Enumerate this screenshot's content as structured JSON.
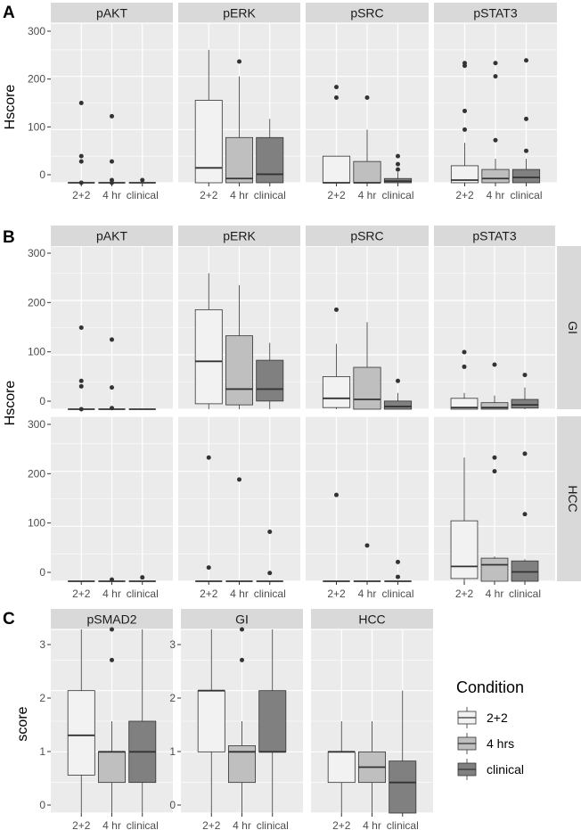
{
  "chart_data": [
    {
      "panel": "A",
      "type": "boxplot",
      "ylabel": "Hscore",
      "ylim": [
        0,
        300
      ],
      "yticks": [
        0,
        100,
        200,
        300
      ],
      "categories": [
        "2+2",
        "4 hr",
        "clinical"
      ],
      "facets": [
        {
          "name": "pAKT",
          "boxes": [
            {
              "q1": 0,
              "median": 0,
              "q3": 0,
              "lo": 0,
              "hi": 0,
              "outliers": [
                150,
                50,
                40,
                0
              ]
            },
            {
              "q1": 0,
              "median": 0,
              "q3": 0,
              "lo": 0,
              "hi": 0,
              "outliers": [
                125,
                40,
                5,
                0
              ]
            },
            {
              "q1": 0,
              "median": 0,
              "q3": 0,
              "lo": 0,
              "hi": 0,
              "outliers": [
                5
              ]
            }
          ]
        },
        {
          "name": "pERK",
          "boxes": [
            {
              "q1": 0,
              "median": 28,
              "q3": 155,
              "lo": 0,
              "hi": 250,
              "outliers": []
            },
            {
              "q1": 0,
              "median": 8,
              "q3": 85,
              "lo": 0,
              "hi": 200,
              "outliers": [
                228
              ]
            },
            {
              "q1": 0,
              "median": 16,
              "q3": 85,
              "lo": 0,
              "hi": 120,
              "outliers": []
            }
          ]
        },
        {
          "name": "pSRC",
          "boxes": [
            {
              "q1": 0,
              "median": 0,
              "q3": 50,
              "lo": 0,
              "hi": 50,
              "outliers": [
                180,
                160
              ]
            },
            {
              "q1": 0,
              "median": 0,
              "q3": 40,
              "lo": 0,
              "hi": 100,
              "outliers": [
                160
              ]
            },
            {
              "q1": 0,
              "median": 3,
              "q3": 8,
              "lo": 0,
              "hi": 20,
              "outliers": [
                50,
                35,
                25
              ]
            }
          ]
        },
        {
          "name": "pSTAT3",
          "boxes": [
            {
              "q1": 0,
              "median": 5,
              "q3": 32,
              "lo": 0,
              "hi": 75,
              "outliers": [
                225,
                220,
                135,
                100
              ]
            },
            {
              "q1": 0,
              "median": 8,
              "q3": 25,
              "lo": 0,
              "hi": 45,
              "outliers": [
                225,
                200,
                80
              ]
            },
            {
              "q1": 0,
              "median": 10,
              "q3": 25,
              "lo": 0,
              "hi": 45,
              "outliers": [
                230,
                120,
                60
              ]
            }
          ]
        }
      ]
    },
    {
      "panel": "B",
      "type": "boxplot",
      "ylabel": "Hscore",
      "ylim": [
        0,
        300
      ],
      "yticks": [
        0,
        100,
        200,
        300
      ],
      "categories": [
        "2+2",
        "4 hr",
        "clinical"
      ],
      "facets": [
        {
          "name": "pAKT",
          "row": "GI",
          "boxes": [
            {
              "q1": 0,
              "median": 0,
              "q3": 0,
              "lo": 0,
              "hi": 0,
              "outliers": [
                150,
                52,
                42,
                0
              ]
            },
            {
              "q1": 0,
              "median": 0,
              "q3": 0,
              "lo": 0,
              "hi": 0,
              "outliers": [
                128,
                40,
                2
              ]
            },
            {
              "q1": 0,
              "median": 0,
              "q3": 0,
              "lo": 0,
              "hi": 0,
              "outliers": []
            }
          ]
        },
        {
          "name": "pERK",
          "row": "GI",
          "boxes": [
            {
              "q1": 10,
              "median": 88,
              "q3": 183,
              "lo": 0,
              "hi": 250,
              "outliers": []
            },
            {
              "q1": 8,
              "median": 37,
              "q3": 135,
              "lo": 0,
              "hi": 228,
              "outliers": []
            },
            {
              "q1": 15,
              "median": 37,
              "q3": 90,
              "lo": 0,
              "hi": 122,
              "outliers": []
            }
          ]
        },
        {
          "name": "pSRC",
          "row": "GI",
          "boxes": [
            {
              "q1": 3,
              "median": 20,
              "q3": 60,
              "lo": 0,
              "hi": 120,
              "outliers": [
                183
              ]
            },
            {
              "q1": 0,
              "median": 18,
              "q3": 77,
              "lo": 0,
              "hi": 160,
              "outliers": []
            },
            {
              "q1": 0,
              "median": 5,
              "q3": 15,
              "lo": 0,
              "hi": 30,
              "outliers": [
                52
              ]
            }
          ]
        },
        {
          "name": "pSTAT3",
          "row": "GI",
          "boxes": [
            {
              "q1": 0,
              "median": 3,
              "q3": 20,
              "lo": 0,
              "hi": 30,
              "outliers": [
                105,
                78
              ]
            },
            {
              "q1": 0,
              "median": 3,
              "q3": 12,
              "lo": 0,
              "hi": 25,
              "outliers": [
                82
              ]
            },
            {
              "q1": 2,
              "median": 8,
              "q3": 18,
              "lo": 0,
              "hi": 40,
              "outliers": [
                63
              ]
            }
          ]
        },
        {
          "name": "pAKT",
          "row": "HCC",
          "boxes": [
            {
              "q1": 0,
              "median": 0,
              "q3": 0,
              "lo": 0,
              "hi": 0,
              "outliers": []
            },
            {
              "q1": 0,
              "median": 0,
              "q3": 0,
              "lo": 0,
              "hi": 0,
              "outliers": [
                3
              ]
            },
            {
              "q1": 0,
              "median": 0,
              "q3": 0,
              "lo": 0,
              "hi": 0,
              "outliers": [
                7
              ]
            }
          ]
        },
        {
          "name": "pERK",
          "row": "HCC",
          "boxes": [
            {
              "q1": 0,
              "median": 0,
              "q3": 0,
              "lo": 0,
              "hi": 0,
              "outliers": [
                225,
                25
              ]
            },
            {
              "q1": 0,
              "median": 0,
              "q3": 0,
              "lo": 0,
              "hi": 0,
              "outliers": [
                185
              ]
            },
            {
              "q1": 0,
              "median": 0,
              "q3": 0,
              "lo": 0,
              "hi": 0,
              "outliers": [
                90,
                15
              ]
            }
          ]
        },
        {
          "name": "pSRC",
          "row": "HCC",
          "boxes": [
            {
              "q1": 0,
              "median": 0,
              "q3": 0,
              "lo": 0,
              "hi": 0,
              "outliers": [
                157
              ]
            },
            {
              "q1": 0,
              "median": 0,
              "q3": 0,
              "lo": 0,
              "hi": 0,
              "outliers": [
                65
              ]
            },
            {
              "q1": 0,
              "median": 0,
              "q3": 0,
              "lo": 0,
              "hi": 0,
              "outliers": [
                35,
                8
              ]
            }
          ]
        },
        {
          "name": "pSTAT3",
          "row": "HCC",
          "boxes": [
            {
              "q1": 5,
              "median": 27,
              "q3": 110,
              "lo": 0,
              "hi": 225,
              "outliers": []
            },
            {
              "q1": 0,
              "median": 30,
              "q3": 42,
              "lo": 0,
              "hi": 45,
              "outliers": [
                225,
                200
              ]
            },
            {
              "q1": 0,
              "median": 17,
              "q3": 37,
              "lo": 0,
              "hi": 40,
              "outliers": [
                232,
                122
              ]
            }
          ]
        }
      ],
      "row_labels": [
        "GI",
        "HCC"
      ]
    },
    {
      "panel": "C",
      "type": "boxplot",
      "ylabel": "score",
      "ylim": [
        0,
        3
      ],
      "yticks": [
        0,
        1,
        2,
        3
      ],
      "categories": [
        "2+2",
        "4 hr",
        "clinical"
      ],
      "facets": [
        {
          "name": "pSMAD2",
          "boxes": [
            {
              "q1": 0.62,
              "median": 1.27,
              "q3": 2.0,
              "lo": 0,
              "hi": 3.0,
              "outliers": []
            },
            {
              "q1": 0.5,
              "median": 1.0,
              "q3": 1.0,
              "lo": 0,
              "hi": 1.5,
              "outliers": [
                3.0,
                2.5
              ]
            },
            {
              "q1": 0.5,
              "median": 1.0,
              "q3": 1.5,
              "lo": 0,
              "hi": 3.0,
              "outliers": []
            }
          ]
        },
        {
          "name": "GI",
          "boxes": [
            {
              "q1": 1.0,
              "median": 2.0,
              "q3": 2.0,
              "lo": 0,
              "hi": 3.0,
              "outliers": []
            },
            {
              "q1": 0.5,
              "median": 1.0,
              "q3": 1.1,
              "lo": 0,
              "hi": 1.5,
              "outliers": [
                3.0,
                2.5
              ]
            },
            {
              "q1": 1.0,
              "median": 1.0,
              "q3": 2.0,
              "lo": 0,
              "hi": 3.0,
              "outliers": []
            }
          ]
        },
        {
          "name": "HCC",
          "boxes": [
            {
              "q1": 0.5,
              "median": 1.0,
              "q3": 1.0,
              "lo": 0,
              "hi": 1.5,
              "outliers": []
            },
            {
              "q1": 0.5,
              "median": 0.75,
              "q3": 1.0,
              "lo": 0,
              "hi": 1.5,
              "outliers": []
            },
            {
              "q1": 0,
              "median": 0.5,
              "q3": 0.85,
              "lo": 0,
              "hi": 2.0,
              "outliers": []
            }
          ]
        }
      ],
      "legend": {
        "title": "Condition",
        "entries": [
          "2+2",
          "4 hrs",
          "clinical"
        ],
        "position": "right"
      }
    }
  ],
  "colors": {
    "panel_bg": "#ebebeb",
    "strip_bg": "#d9d9d9",
    "grid": "#ffffff",
    "fill_2p2": "#f2f2f2",
    "fill_4hr": "#bfbfbf",
    "fill_clinical": "#808080",
    "line": "#333333"
  },
  "panel_letters": [
    "A",
    "B",
    "C"
  ]
}
